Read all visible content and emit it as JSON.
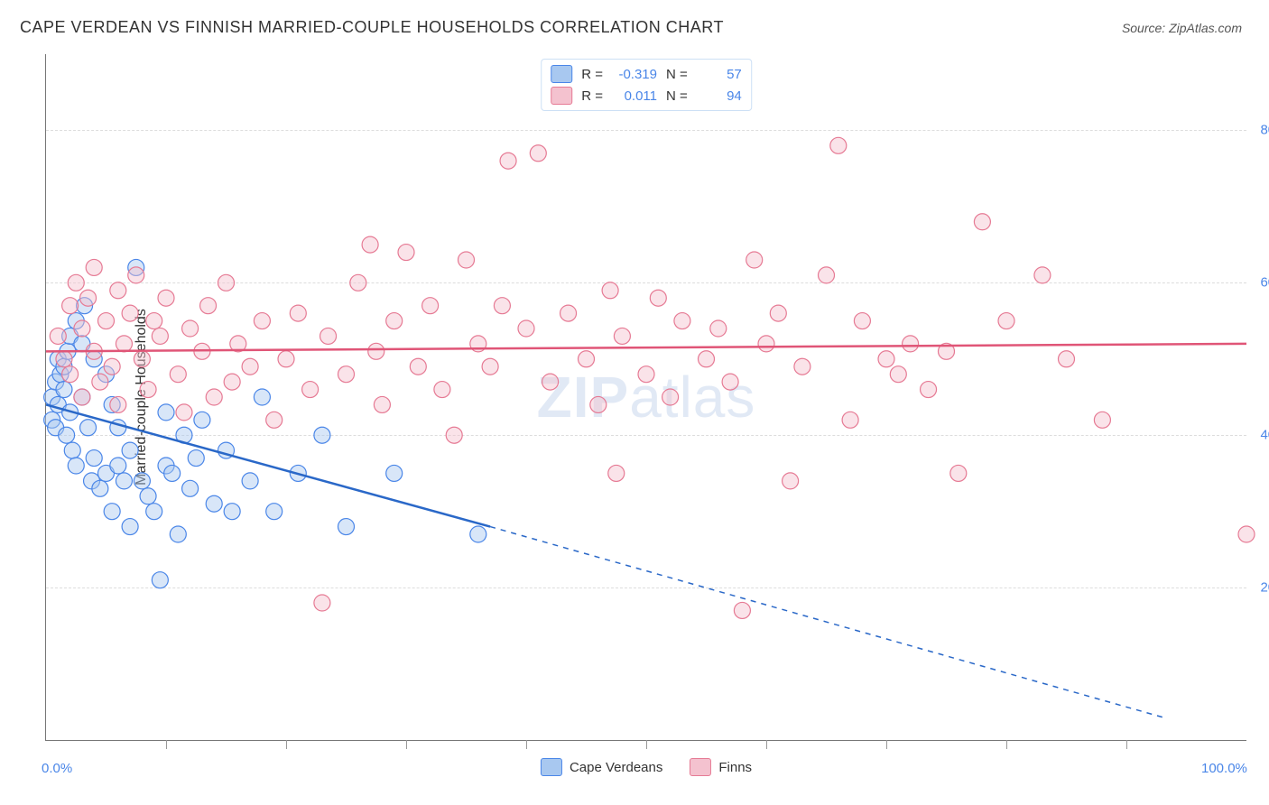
{
  "title": "CAPE VERDEAN VS FINNISH MARRIED-COUPLE HOUSEHOLDS CORRELATION CHART",
  "source": "Source: ZipAtlas.com",
  "ylabel": "Married-couple Households",
  "watermark_a": "ZIP",
  "watermark_b": "atlas",
  "chart": {
    "type": "scatter",
    "background_color": "#ffffff",
    "grid_color": "#dddddd",
    "axis_color": "#777777",
    "xlim": [
      0,
      100
    ],
    "ylim": [
      0,
      90
    ],
    "xticks": [
      10,
      20,
      30,
      40,
      50,
      60,
      70,
      80,
      90
    ],
    "xlabels": [
      {
        "v": 0,
        "t": "0.0%",
        "color": "#4a86e8"
      },
      {
        "v": 100,
        "t": "100.0%",
        "color": "#4a86e8"
      }
    ],
    "ygrid": [
      20,
      40,
      60,
      80
    ],
    "ylabels": [
      {
        "v": 20,
        "t": "20.0%",
        "color": "#4a86e8"
      },
      {
        "v": 40,
        "t": "40.0%",
        "color": "#4a86e8"
      },
      {
        "v": 60,
        "t": "60.0%",
        "color": "#4a86e8"
      },
      {
        "v": 80,
        "t": "80.0%",
        "color": "#4a86e8"
      }
    ],
    "marker_radius": 9,
    "marker_opacity": 0.45,
    "marker_stroke_width": 1.2,
    "series": [
      {
        "id": "cape_verdeans",
        "label": "Cape Verdeans",
        "fill": "#a8c8f0",
        "stroke": "#4a86e8",
        "R": "-0.319",
        "N": "57",
        "trend": {
          "x1": 0,
          "y1": 44,
          "x2": 37,
          "y2": 28,
          "extend_x2": 93,
          "extend_y2": 3,
          "color": "#2a68c8",
          "width": 2.5
        },
        "points": [
          [
            0.5,
            42
          ],
          [
            0.5,
            45
          ],
          [
            0.8,
            47
          ],
          [
            0.8,
            41
          ],
          [
            1,
            50
          ],
          [
            1,
            44
          ],
          [
            1.2,
            48
          ],
          [
            1.5,
            46
          ],
          [
            1.5,
            49
          ],
          [
            1.7,
            40
          ],
          [
            1.8,
            51
          ],
          [
            2,
            43
          ],
          [
            2,
            53
          ],
          [
            2.2,
            38
          ],
          [
            2.5,
            55
          ],
          [
            2.5,
            36
          ],
          [
            3,
            45
          ],
          [
            3,
            52
          ],
          [
            3.2,
            57
          ],
          [
            3.5,
            41
          ],
          [
            3.8,
            34
          ],
          [
            4,
            50
          ],
          [
            4,
            37
          ],
          [
            4.5,
            33
          ],
          [
            5,
            35
          ],
          [
            5,
            48
          ],
          [
            5.5,
            44
          ],
          [
            5.5,
            30
          ],
          [
            6,
            36
          ],
          [
            6,
            41
          ],
          [
            6.5,
            34
          ],
          [
            7,
            38
          ],
          [
            7,
            28
          ],
          [
            7.5,
            62
          ],
          [
            8,
            34
          ],
          [
            8.5,
            32
          ],
          [
            9,
            30
          ],
          [
            9.5,
            21
          ],
          [
            10,
            36
          ],
          [
            10,
            43
          ],
          [
            10.5,
            35
          ],
          [
            11,
            27
          ],
          [
            11.5,
            40
          ],
          [
            12,
            33
          ],
          [
            12.5,
            37
          ],
          [
            13,
            42
          ],
          [
            14,
            31
          ],
          [
            15,
            38
          ],
          [
            15.5,
            30
          ],
          [
            17,
            34
          ],
          [
            18,
            45
          ],
          [
            19,
            30
          ],
          [
            21,
            35
          ],
          [
            23,
            40
          ],
          [
            25,
            28
          ],
          [
            29,
            35
          ],
          [
            36,
            27
          ]
        ]
      },
      {
        "id": "finns",
        "label": "Finns",
        "fill": "#f4c2cf",
        "stroke": "#e67a94",
        "R": "0.011",
        "N": "94",
        "trend": {
          "x1": 0,
          "y1": 51,
          "x2": 100,
          "y2": 52,
          "color": "#e05577",
          "width": 2.5
        },
        "points": [
          [
            1,
            53
          ],
          [
            1.5,
            50
          ],
          [
            2,
            57
          ],
          [
            2,
            48
          ],
          [
            2.5,
            60
          ],
          [
            3,
            54
          ],
          [
            3,
            45
          ],
          [
            3.5,
            58
          ],
          [
            4,
            51
          ],
          [
            4,
            62
          ],
          [
            4.5,
            47
          ],
          [
            5,
            55
          ],
          [
            5.5,
            49
          ],
          [
            6,
            59
          ],
          [
            6,
            44
          ],
          [
            6.5,
            52
          ],
          [
            7,
            56
          ],
          [
            7.5,
            61
          ],
          [
            8,
            50
          ],
          [
            8.5,
            46
          ],
          [
            9,
            55
          ],
          [
            9.5,
            53
          ],
          [
            10,
            58
          ],
          [
            11,
            48
          ],
          [
            11.5,
            43
          ],
          [
            12,
            54
          ],
          [
            13,
            51
          ],
          [
            13.5,
            57
          ],
          [
            14,
            45
          ],
          [
            15,
            60
          ],
          [
            15.5,
            47
          ],
          [
            16,
            52
          ],
          [
            17,
            49
          ],
          [
            18,
            55
          ],
          [
            19,
            42
          ],
          [
            20,
            50
          ],
          [
            21,
            56
          ],
          [
            22,
            46
          ],
          [
            23,
            18
          ],
          [
            23.5,
            53
          ],
          [
            25,
            48
          ],
          [
            26,
            60
          ],
          [
            27,
            65
          ],
          [
            27.5,
            51
          ],
          [
            28,
            44
          ],
          [
            29,
            55
          ],
          [
            30,
            64
          ],
          [
            31,
            49
          ],
          [
            32,
            57
          ],
          [
            33,
            46
          ],
          [
            34,
            40
          ],
          [
            35,
            63
          ],
          [
            36,
            52
          ],
          [
            37,
            49
          ],
          [
            38,
            57
          ],
          [
            38.5,
            76
          ],
          [
            40,
            54
          ],
          [
            41,
            77
          ],
          [
            42,
            47
          ],
          [
            43.5,
            56
          ],
          [
            45,
            50
          ],
          [
            46,
            44
          ],
          [
            47,
            59
          ],
          [
            47.5,
            35
          ],
          [
            48,
            53
          ],
          [
            50,
            48
          ],
          [
            51,
            58
          ],
          [
            52,
            45
          ],
          [
            53,
            55
          ],
          [
            55,
            50
          ],
          [
            56,
            54
          ],
          [
            57,
            47
          ],
          [
            58,
            17
          ],
          [
            59,
            63
          ],
          [
            60,
            52
          ],
          [
            61,
            56
          ],
          [
            62,
            34
          ],
          [
            63,
            49
          ],
          [
            65,
            61
          ],
          [
            66,
            78
          ],
          [
            67,
            42
          ],
          [
            68,
            55
          ],
          [
            70,
            50
          ],
          [
            71,
            48
          ],
          [
            72,
            52
          ],
          [
            73.5,
            46
          ],
          [
            75,
            51
          ],
          [
            76,
            35
          ],
          [
            78,
            68
          ],
          [
            80,
            55
          ],
          [
            83,
            61
          ],
          [
            85,
            50
          ],
          [
            88,
            42
          ],
          [
            100,
            27
          ]
        ]
      }
    ]
  }
}
